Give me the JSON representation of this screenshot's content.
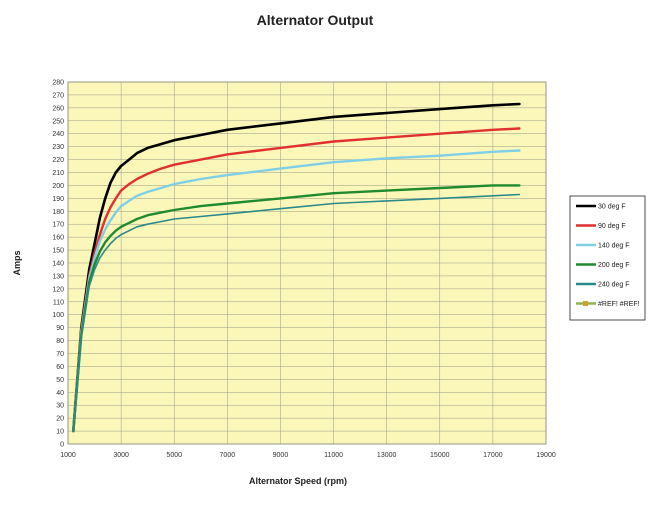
{
  "chart_data": {
    "type": "line",
    "title": "Alternator Output",
    "xlabel": "Alternator Speed (rpm)",
    "ylabel": "Amps",
    "xlim": [
      1000,
      19000
    ],
    "ylim": [
      0,
      280
    ],
    "x_ticks": [
      1000,
      3000,
      5000,
      7000,
      9000,
      11000,
      13000,
      15000,
      17000,
      19000
    ],
    "y_ticks": [
      0,
      10,
      20,
      30,
      40,
      50,
      60,
      70,
      80,
      90,
      100,
      110,
      120,
      130,
      140,
      150,
      160,
      170,
      180,
      190,
      200,
      210,
      220,
      230,
      240,
      250,
      260,
      270,
      280
    ],
    "grid": true,
    "plot_background": "#fbf7b9",
    "legend_position": "right",
    "series": [
      {
        "name": "30 deg F",
        "color": "#000000",
        "x": [
          1200,
          1500,
          1800,
          2000,
          2200,
          2400,
          2600,
          2800,
          3000,
          3300,
          3600,
          4000,
          4500,
          5000,
          6000,
          7000,
          9000,
          11000,
          13000,
          15000,
          17000,
          18000
        ],
        "values": [
          10,
          90,
          135,
          155,
          175,
          190,
          202,
          210,
          215,
          220,
          225,
          229,
          232,
          235,
          239,
          243,
          248,
          253,
          256,
          259,
          262,
          263
        ]
      },
      {
        "name": "90 deg F",
        "color": "#e03030",
        "x": [
          1200,
          1500,
          1800,
          2000,
          2200,
          2400,
          2600,
          2800,
          3000,
          3300,
          3600,
          4000,
          4500,
          5000,
          6000,
          7000,
          9000,
          11000,
          13000,
          15000,
          17000,
          18000
        ],
        "values": [
          10,
          88,
          130,
          148,
          162,
          174,
          183,
          190,
          196,
          201,
          205,
          209,
          213,
          216,
          220,
          224,
          229,
          234,
          237,
          240,
          243,
          244
        ]
      },
      {
        "name": "140 deg F",
        "color": "#7fcfe6",
        "x": [
          1200,
          1500,
          1800,
          2000,
          2200,
          2400,
          2600,
          2800,
          3000,
          3300,
          3600,
          4000,
          4500,
          5000,
          6000,
          7000,
          9000,
          11000,
          13000,
          15000,
          17000,
          18000
        ],
        "values": [
          10,
          86,
          128,
          144,
          157,
          166,
          173,
          179,
          184,
          188,
          192,
          195,
          198,
          201,
          205,
          208,
          213,
          218,
          221,
          223,
          226,
          227
        ]
      },
      {
        "name": "200 deg F",
        "color": "#1f8a2e",
        "x": [
          1200,
          1500,
          1800,
          2000,
          2200,
          2400,
          2600,
          2800,
          3000,
          3300,
          3600,
          4000,
          4500,
          5000,
          6000,
          7000,
          9000,
          11000,
          13000,
          15000,
          17000,
          18000
        ],
        "values": [
          10,
          84,
          125,
          139,
          149,
          156,
          161,
          165,
          168,
          171,
          174,
          177,
          179,
          181,
          184,
          186,
          190,
          194,
          196,
          198,
          200,
          200
        ]
      },
      {
        "name": "240 deg F",
        "color": "#2a8a8a",
        "x": [
          1200,
          1500,
          1800,
          2000,
          2200,
          2400,
          2600,
          2800,
          3000,
          3300,
          3600,
          4000,
          4500,
          5000,
          6000,
          7000,
          9000,
          11000,
          13000,
          15000,
          17000,
          18000
        ],
        "values": [
          10,
          82,
          122,
          135,
          144,
          150,
          155,
          159,
          162,
          165,
          168,
          170,
          172,
          174,
          176,
          178,
          182,
          186,
          188,
          190,
          192,
          193
        ]
      },
      {
        "name": "#REF! #REF!",
        "color": "#8fb34a",
        "x": [],
        "values": []
      }
    ]
  }
}
